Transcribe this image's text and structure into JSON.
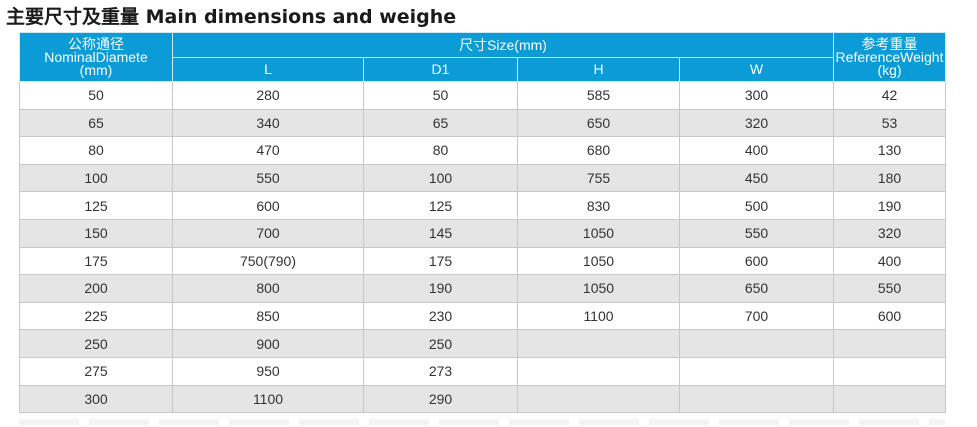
{
  "title": "主要尺寸及重量 Main dimensions and weighe",
  "header": {
    "nominal_cn": "公称通径",
    "nominal_en": "NominalDiamete",
    "nominal_unit": "(mm)",
    "size_group": "尺寸Size(mm)",
    "L": "L",
    "D1": "D1",
    "H": "H",
    "W": "W",
    "weight_cn": "参考重量",
    "weight_en": "ReferenceWeight",
    "weight_unit": "(kg)"
  },
  "rows": [
    {
      "dn": "50",
      "L": "280",
      "D1": "50",
      "H": "585",
      "W": "300",
      "kg": "42"
    },
    {
      "dn": "65",
      "L": "340",
      "D1": "65",
      "H": "650",
      "W": "320",
      "kg": "53"
    },
    {
      "dn": "80",
      "L": "470",
      "D1": "80",
      "H": "680",
      "W": "400",
      "kg": "130"
    },
    {
      "dn": "100",
      "L": "550",
      "D1": "100",
      "H": "755",
      "W": "450",
      "kg": "180"
    },
    {
      "dn": "125",
      "L": "600",
      "D1": "125",
      "H": "830",
      "W": "500",
      "kg": "190"
    },
    {
      "dn": "150",
      "L": "700",
      "D1": "145",
      "H": "1050",
      "W": "550",
      "kg": "320"
    },
    {
      "dn": "175",
      "L": "750(790)",
      "D1": "175",
      "H": "1050",
      "W": "600",
      "kg": "400"
    },
    {
      "dn": "200",
      "L": "800",
      "D1": "190",
      "H": "1050",
      "W": "650",
      "kg": "550"
    },
    {
      "dn": "225",
      "L": "850",
      "D1": "230",
      "H": "1100",
      "W": "700",
      "kg": "600"
    },
    {
      "dn": "250",
      "L": "900",
      "D1": "250",
      "H": "",
      "W": "",
      "kg": ""
    },
    {
      "dn": "275",
      "L": "950",
      "D1": "273",
      "H": "",
      "W": "",
      "kg": ""
    },
    {
      "dn": "300",
      "L": "1100",
      "D1": "290",
      "H": "",
      "W": "",
      "kg": ""
    }
  ],
  "colors": {
    "header_bg": "#0b9bd7",
    "row_alt": "#e5e5e6"
  }
}
